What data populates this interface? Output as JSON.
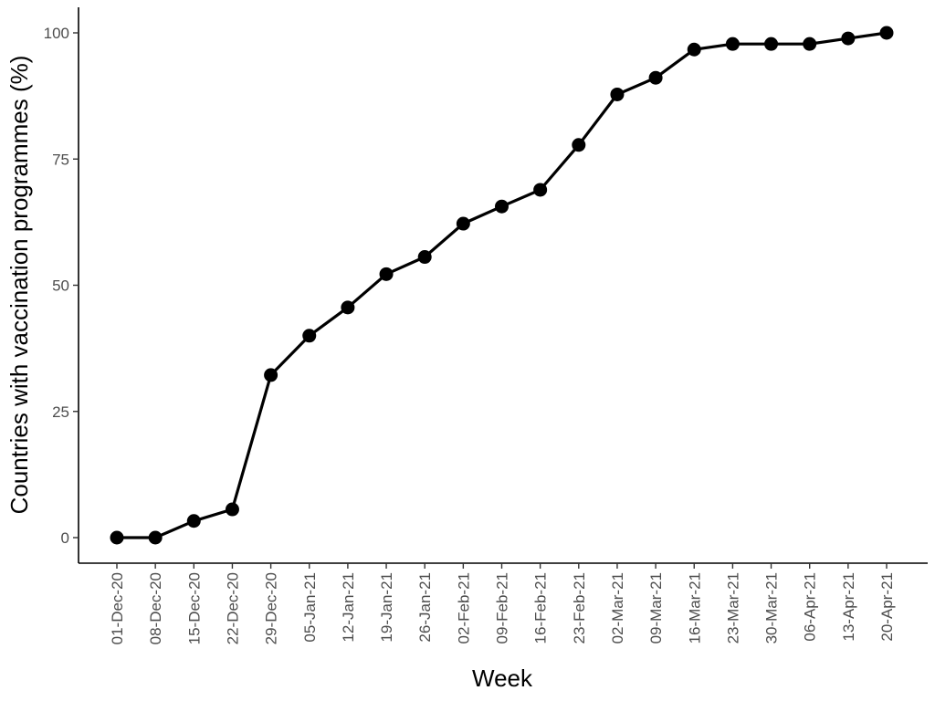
{
  "chart_data": {
    "type": "line",
    "title": "",
    "xlabel": "Week",
    "ylabel": "Countries with vaccination programmes (%)",
    "ylim": [
      0,
      100
    ],
    "yticks": [
      0,
      25,
      50,
      75,
      100
    ],
    "yticklabels": [
      "0",
      "25",
      "50",
      "75",
      "100"
    ],
    "categories": [
      "01-Dec-20",
      "08-Dec-20",
      "15-Dec-20",
      "22-Dec-20",
      "29-Dec-20",
      "05-Jan-21",
      "12-Jan-21",
      "19-Jan-21",
      "26-Jan-21",
      "02-Feb-21",
      "09-Feb-21",
      "16-Feb-21",
      "23-Feb-21",
      "02-Mar-21",
      "09-Mar-21",
      "16-Mar-21",
      "23-Mar-21",
      "30-Mar-21",
      "06-Apr-21",
      "13-Apr-21",
      "20-Apr-21"
    ],
    "values": [
      0,
      0,
      3.3,
      5.6,
      32.2,
      40.0,
      45.6,
      52.2,
      55.6,
      62.2,
      65.6,
      68.9,
      77.8,
      87.8,
      91.1,
      96.7,
      97.8,
      97.8,
      97.8,
      98.9,
      100
    ],
    "grid": false,
    "line_color": "#000000",
    "point_color": "#000000"
  }
}
